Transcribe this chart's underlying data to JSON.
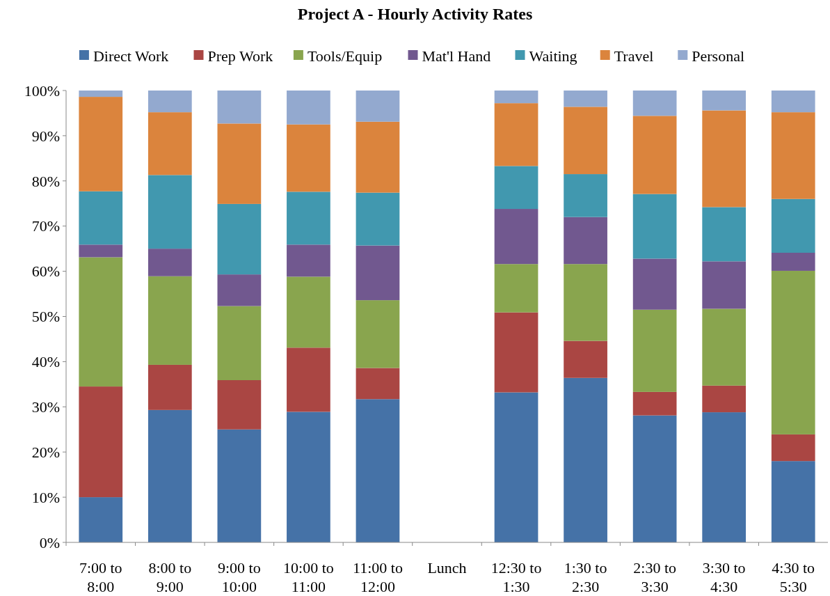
{
  "chart_data": {
    "type": "bar",
    "title": "Project A - Hourly Activity Rates",
    "stacked": true,
    "legend": "top",
    "grid": false,
    "categories": [
      "7:00 to 8:00",
      "8:00 to 9:00",
      "9:00 to 10:00",
      "10:00 to 11:00",
      "11:00 to 12:00",
      "Lunch",
      "12:30 to 1:30",
      "1:30 to 2:30",
      "2:30 to 3:30",
      "3:30 to 4:30",
      "4:30 to 5:30"
    ],
    "ylim": [
      0,
      100
    ],
    "yticks": [
      {
        "value": 0,
        "label": "0%"
      },
      {
        "value": 10,
        "label": "10%"
      },
      {
        "value": 20,
        "label": "20%"
      },
      {
        "value": 30,
        "label": "30%"
      },
      {
        "value": 40,
        "label": "40%"
      },
      {
        "value": 50,
        "label": "50%"
      },
      {
        "value": 60,
        "label": "60%"
      },
      {
        "value": 70,
        "label": "70%"
      },
      {
        "value": 80,
        "label": "80%"
      },
      {
        "value": 90,
        "label": "90%"
      },
      {
        "value": 100,
        "label": "100%"
      }
    ],
    "series": [
      {
        "name": "Direct Work",
        "color": "#4572a7",
        "values": [
          10,
          29.3,
          25,
          28.9,
          31.7,
          null,
          33.2,
          36.4,
          28.1,
          28.8,
          18
        ]
      },
      {
        "name": "Prep Work",
        "color": "#aa4643",
        "values": [
          24.5,
          10,
          10.9,
          14.2,
          6.9,
          null,
          17.7,
          8.2,
          5.2,
          5.9,
          5.9
        ]
      },
      {
        "name": "Tools/Equip",
        "color": "#89a54e",
        "values": [
          28.6,
          19.6,
          16.4,
          15.7,
          15,
          null,
          10.7,
          17,
          18.2,
          17,
          36.2
        ]
      },
      {
        "name": "Mat'l Hand",
        "color": "#71588f",
        "values": [
          2.8,
          6.1,
          7,
          7.1,
          12.1,
          null,
          12.2,
          10.4,
          11.3,
          10.5,
          4
        ]
      },
      {
        "name": "Waiting",
        "color": "#4198af",
        "values": [
          11.8,
          16.3,
          15.6,
          11.7,
          11.7,
          null,
          9.5,
          9.5,
          14.3,
          12,
          11.9
        ]
      },
      {
        "name": "Travel",
        "color": "#db843d",
        "values": [
          20.9,
          13.9,
          17.8,
          14.9,
          15.7,
          null,
          13.9,
          14.9,
          17.3,
          21.4,
          19.2
        ]
      },
      {
        "name": "Personal",
        "color": "#93a9cf",
        "values": [
          1.4,
          4.8,
          7.3,
          7.5,
          6.9,
          null,
          2.8,
          3.6,
          5.6,
          4.4,
          4.8
        ]
      }
    ]
  }
}
